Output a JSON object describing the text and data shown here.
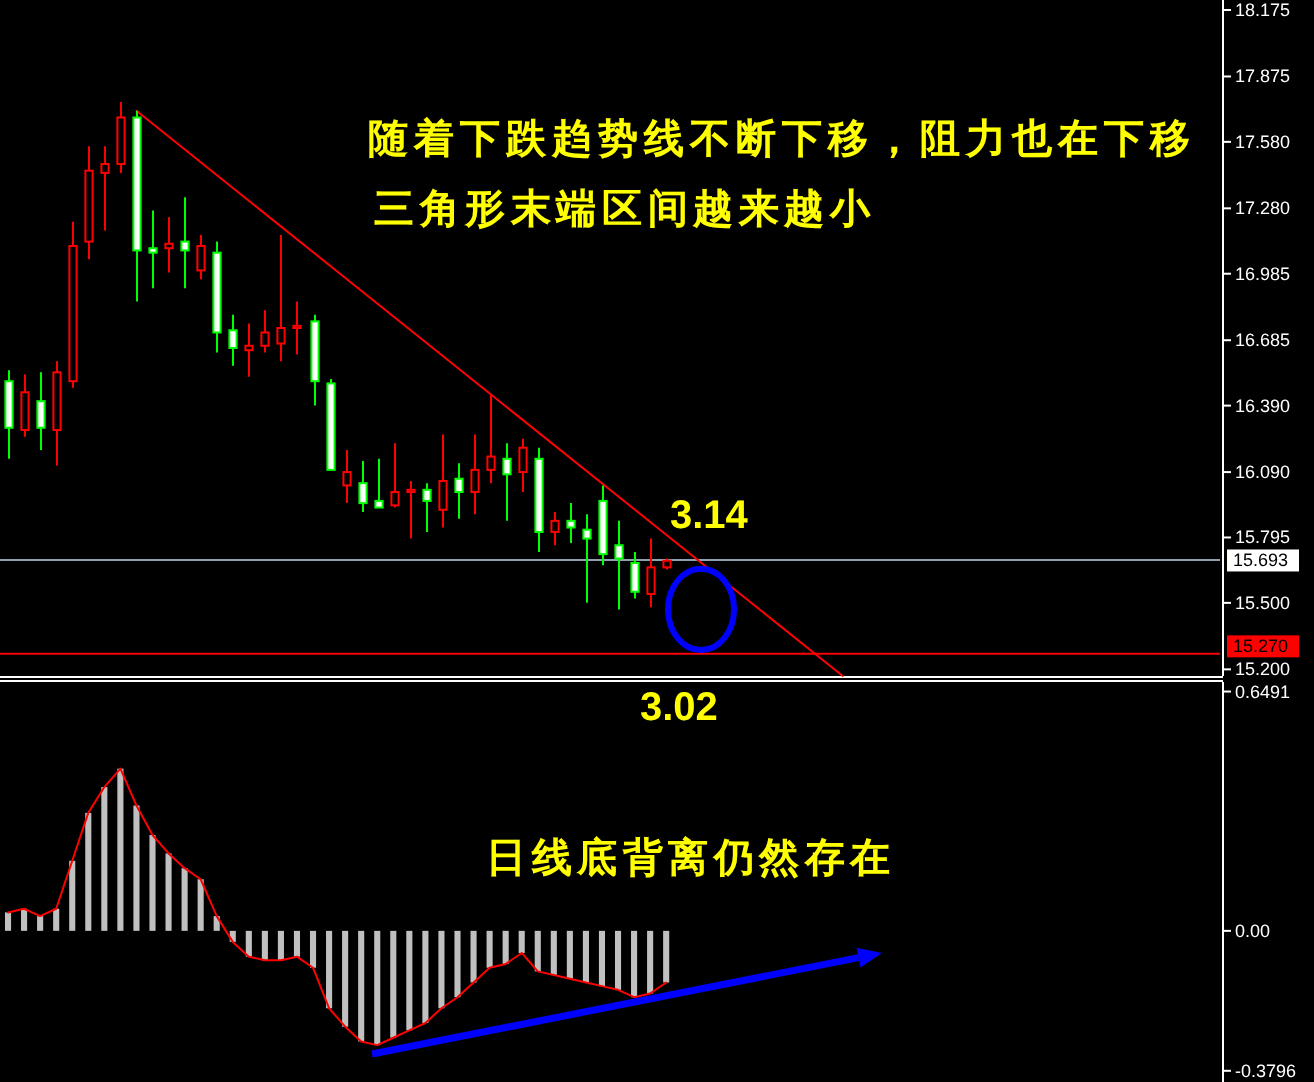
{
  "chart_data": [
    {
      "type": "candlestick",
      "categories": [
        null,
        null,
        null,
        null,
        null,
        null,
        null,
        null,
        null,
        null,
        null,
        null,
        null,
        null,
        null,
        null,
        null,
        null,
        null,
        null,
        null,
        null,
        null,
        null,
        null,
        null,
        null,
        null,
        null,
        null,
        null,
        null,
        null,
        null,
        null,
        null,
        null,
        null,
        null,
        null,
        null,
        null,
        null,
        null,
        null,
        null,
        null,
        null,
        null,
        null,
        null,
        null,
        null,
        null,
        null,
        null,
        null,
        null,
        null,
        null,
        null,
        null,
        null,
        null,
        null,
        null,
        null,
        null,
        null,
        null,
        null,
        null,
        null,
        null,
        null,
        null
      ],
      "ohlc": [
        [
          16.5,
          16.55,
          16.15,
          16.29
        ],
        [
          16.28,
          16.53,
          16.25,
          16.45
        ],
        [
          16.41,
          16.54,
          16.19,
          16.29
        ],
        [
          16.28,
          16.59,
          16.12,
          16.54
        ],
        [
          16.5,
          17.22,
          16.47,
          17.11
        ],
        [
          17.13,
          17.56,
          17.05,
          17.45
        ],
        [
          17.44,
          17.56,
          17.18,
          17.48
        ],
        [
          17.48,
          17.76,
          17.44,
          17.69
        ],
        [
          17.69,
          17.72,
          16.86,
          17.09
        ],
        [
          17.1,
          17.27,
          16.92,
          17.08
        ],
        [
          17.1,
          17.24,
          16.99,
          17.12
        ],
        [
          17.13,
          17.33,
          16.92,
          17.09
        ],
        [
          17.0,
          17.16,
          16.96,
          17.11
        ],
        [
          17.08,
          17.13,
          16.63,
          16.72
        ],
        [
          16.73,
          16.8,
          16.57,
          16.65
        ],
        [
          16.64,
          16.76,
          16.52,
          16.66
        ],
        [
          16.66,
          16.82,
          16.63,
          16.72
        ],
        [
          16.67,
          17.16,
          16.59,
          16.74
        ],
        [
          16.74,
          16.86,
          16.62,
          16.75
        ],
        [
          16.77,
          16.8,
          16.39,
          16.5
        ],
        [
          16.49,
          16.51,
          16.1,
          16.1
        ],
        [
          16.03,
          16.19,
          15.95,
          16.09
        ],
        [
          16.04,
          16.14,
          15.91,
          15.95
        ],
        [
          15.96,
          16.15,
          15.93,
          15.93
        ],
        [
          15.94,
          16.22,
          15.93,
          16.0
        ],
        [
          16.0,
          16.05,
          15.79,
          16.01
        ],
        [
          16.01,
          16.04,
          15.82,
          15.96
        ],
        [
          15.92,
          16.26,
          15.84,
          16.05
        ],
        [
          16.06,
          16.13,
          15.88,
          16.0
        ],
        [
          16.0,
          16.26,
          15.9,
          16.1
        ],
        [
          16.1,
          16.44,
          16.04,
          16.16
        ],
        [
          16.15,
          16.22,
          15.87,
          16.08
        ],
        [
          16.09,
          16.24,
          16.0,
          16.2
        ],
        [
          16.15,
          16.2,
          15.73,
          15.82
        ],
        [
          15.82,
          15.91,
          15.76,
          15.87
        ],
        [
          15.87,
          15.95,
          15.77,
          15.84
        ],
        [
          15.83,
          15.9,
          15.5,
          15.79
        ],
        [
          15.96,
          16.03,
          15.67,
          15.72
        ],
        [
          15.76,
          15.87,
          15.47,
          15.7
        ],
        [
          15.68,
          15.73,
          15.52,
          15.55
        ],
        [
          15.54,
          15.79,
          15.48,
          15.66
        ],
        [
          15.66,
          15.7,
          15.65,
          15.69
        ],
        null,
        null,
        null,
        null,
        null,
        null,
        null,
        null,
        null,
        null,
        null,
        null,
        null,
        null,
        null,
        null,
        null,
        null,
        null,
        null,
        null,
        null,
        null,
        null,
        null,
        null,
        null,
        null,
        null,
        null,
        null,
        null,
        null,
        null
      ],
      "colors": [
        "#00ff00",
        "#ff0000",
        "#00ff00",
        "#ff0000",
        "#ff0000",
        "#ff0000",
        "#ff0000",
        "#ff0000",
        "#00ff00",
        "#00ff00",
        "#ff0000",
        "#00ff00",
        "#ff0000",
        "#00ff00",
        "#00ff00",
        "#ff0000",
        "#ff0000",
        "#ff0000",
        "#ff0000",
        "#00ff00",
        "#00ff00",
        "#ff0000",
        "#00ff00",
        "#00ff00",
        "#ff0000",
        "#ff0000",
        "#00ff00",
        "#ff0000",
        "#00ff00",
        "#ff0000",
        "#ff0000",
        "#00ff00",
        "#ff0000",
        "#00ff00",
        "#ff0000",
        "#00ff00",
        "#00ff00",
        "#00ff00",
        "#00ff00",
        "#00ff00",
        "#ff0000",
        "#ff0000",
        null,
        null,
        null,
        null,
        null,
        null,
        null,
        null,
        null,
        null,
        null,
        null,
        null,
        null,
        null,
        null,
        null,
        null,
        null,
        null,
        null,
        null,
        null,
        null,
        null,
        null,
        null,
        null,
        null,
        null,
        null,
        null,
        null,
        null
      ],
      "series": [
        {
          "type": "line",
          "values": [
            null,
            null,
            null,
            null,
            null,
            null,
            null,
            null,
            17.72,
            null,
            null,
            null,
            null,
            null,
            null,
            null,
            null,
            null,
            null,
            null,
            null,
            null,
            null,
            null,
            null,
            null,
            null,
            null,
            null,
            null,
            null,
            null,
            null,
            null,
            null,
            null,
            null,
            null,
            null,
            null,
            null,
            null,
            null,
            null,
            null,
            null,
            null,
            null,
            null,
            null,
            null,
            null,
            15.17,
            null,
            null,
            null,
            null,
            null,
            null,
            null,
            null,
            null,
            null,
            null,
            null,
            null,
            null,
            null,
            null,
            null,
            null,
            null,
            null,
            null,
            null,
            null
          ],
          "color": "#ff0000"
        }
      ],
      "ylim": [
        15.17,
        18.22
      ],
      "yticks": [
        18.175,
        17.875,
        {
          "value": 17.58,
          "label": "17.580"
        },
        {
          "value": 17.28,
          "label": "17.280"
        },
        16.985,
        16.685,
        {
          "value": 16.39,
          "label": "16.390"
        },
        {
          "value": 16.09,
          "label": "16.090"
        },
        15.795,
        {
          "value": 15.5,
          "label": "15.500"
        },
        {
          "value": 15.2,
          "label": "15.200"
        }
      ],
      "tick_labels": "y",
      "ref_lines": [
        {
          "axis": "y",
          "value": 15.693,
          "label": "15.693",
          "color": "#8fa0b0"
        },
        {
          "axis": "y",
          "value": 15.27,
          "label": "15.270",
          "color": "#ff0000"
        }
      ],
      "annotations": [
        "随着下跌趋势线不断下移，阻力也在下移",
        "三角形末端区间越来越小",
        "3.14",
        "3.02"
      ]
    },
    {
      "type": "bar",
      "categories": [
        null,
        null,
        null,
        null,
        null,
        null,
        null,
        null,
        null,
        null,
        null,
        null,
        null,
        null,
        null,
        null,
        null,
        null,
        null,
        null,
        null,
        null,
        null,
        null,
        null,
        null,
        null,
        null,
        null,
        null,
        null,
        null,
        null,
        null,
        null,
        null,
        null,
        null,
        null,
        null,
        null,
        null,
        null,
        null,
        null,
        null,
        null,
        null,
        null,
        null,
        null,
        null,
        null,
        null,
        null,
        null,
        null,
        null,
        null,
        null,
        null,
        null,
        null,
        null,
        null,
        null,
        null,
        null,
        null,
        null,
        null,
        null,
        null,
        null,
        null,
        null
      ],
      "series": [
        {
          "values": [
            0.05,
            0.06,
            0.04,
            0.06,
            0.19,
            0.32,
            0.39,
            0.44,
            0.34,
            0.26,
            0.21,
            0.17,
            0.14,
            0.04,
            -0.03,
            -0.07,
            -0.08,
            -0.08,
            -0.07,
            -0.1,
            -0.21,
            -0.26,
            -0.3,
            -0.31,
            -0.29,
            -0.27,
            -0.25,
            -0.21,
            -0.18,
            -0.14,
            -0.1,
            -0.09,
            -0.06,
            -0.11,
            -0.12,
            -0.13,
            -0.14,
            -0.15,
            -0.16,
            -0.18,
            -0.17,
            -0.14,
            null,
            null,
            null,
            null,
            null,
            null,
            null,
            null,
            null,
            null,
            null,
            null,
            null,
            null,
            null,
            null,
            null,
            null,
            null,
            null,
            null,
            null,
            null,
            null,
            null,
            null,
            null,
            null,
            null,
            null,
            null,
            null,
            null,
            null
          ],
          "color": "#c0c0c0"
        },
        {
          "type": "line",
          "values": [
            0.05,
            0.06,
            0.04,
            0.06,
            0.19,
            0.32,
            0.39,
            0.44,
            0.34,
            0.26,
            0.21,
            0.17,
            0.14,
            0.04,
            -0.03,
            -0.07,
            -0.08,
            -0.08,
            -0.07,
            -0.1,
            -0.21,
            -0.26,
            -0.3,
            -0.31,
            -0.29,
            -0.27,
            -0.25,
            -0.21,
            -0.18,
            -0.14,
            -0.1,
            -0.09,
            -0.06,
            -0.11,
            -0.12,
            -0.13,
            -0.14,
            -0.15,
            -0.16,
            -0.18,
            -0.17,
            -0.14,
            null,
            null,
            null,
            null,
            null,
            null,
            null,
            null,
            null,
            null,
            null,
            null,
            null,
            null,
            null,
            null,
            null,
            null,
            null,
            null,
            null,
            null,
            null,
            null,
            null,
            null,
            null,
            null,
            null,
            null,
            null,
            null,
            null,
            null
          ],
          "color": "#ff0000"
        }
      ],
      "ylim": [
        -0.41,
        0.675
      ],
      "yticks": [
        0.6491,
        {
          "value": 0,
          "label": "0.00"
        },
        -0.3796
      ],
      "tick_labels": "y",
      "annotations": [
        "日线底背离仍然存在"
      ]
    }
  ]
}
